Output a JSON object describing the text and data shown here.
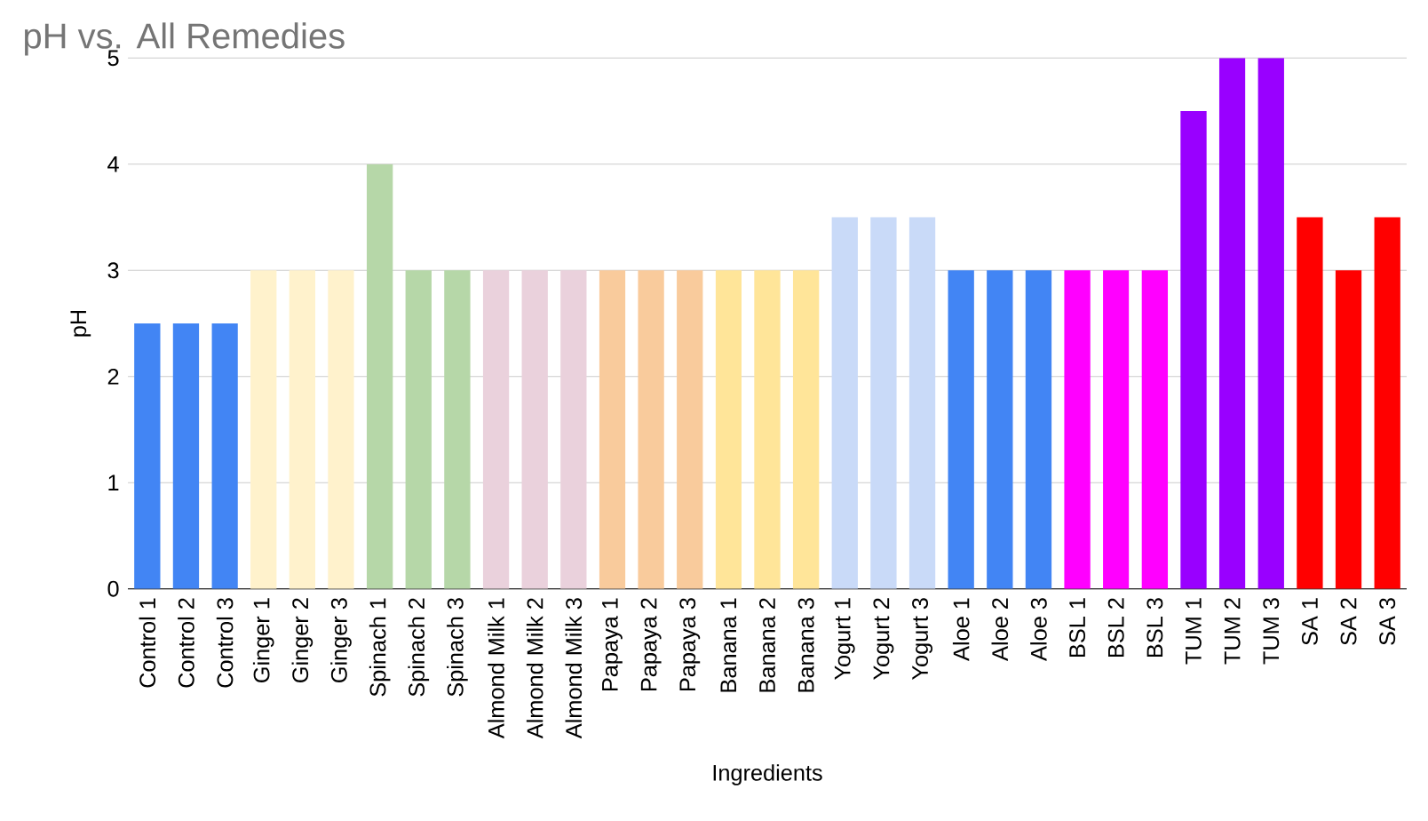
{
  "chart_data": {
    "type": "bar",
    "title": "pH vs. All Remedies",
    "xlabel": "Ingredients",
    "ylabel": "pH",
    "categories": [
      "Control 1",
      "Control 2",
      "Control 3",
      "Ginger 1",
      "Ginger 2",
      "Ginger 3",
      "Spinach 1",
      "Spinach 2",
      "Spinach 3",
      "Almond Milk 1",
      "Almond Milk 2",
      "Almond Milk 3",
      "Papaya 1",
      "Papaya 2",
      "Papaya 3",
      "Banana 1",
      "Banana 2",
      "Banana 3",
      "Yogurt 1",
      "Yogurt 2",
      "Yogurt 3",
      "Aloe 1",
      "Aloe 2",
      "Aloe 3",
      "BSL 1",
      "BSL 2",
      "BSL 3",
      "TUM 1",
      "TUM 2",
      "TUM 3",
      "SA 1",
      "SA 2",
      "SA 3"
    ],
    "values": [
      2.5,
      2.5,
      2.5,
      3,
      3,
      3,
      4,
      3,
      3,
      3,
      3,
      3,
      3,
      3,
      3,
      3,
      3,
      3,
      3.5,
      3.5,
      3.5,
      3,
      3,
      3,
      3,
      3,
      3,
      4.5,
      5,
      5,
      3.5,
      3,
      3.5
    ],
    "colors": [
      "#4285f4",
      "#4285f4",
      "#4285f4",
      "#fff2cc",
      "#fff2cc",
      "#fff2cc",
      "#b6d7a8",
      "#b6d7a8",
      "#b6d7a8",
      "#ead1dc",
      "#ead1dc",
      "#ead1dc",
      "#f9cb9c",
      "#f9cb9c",
      "#f9cb9c",
      "#ffe599",
      "#ffe599",
      "#ffe599",
      "#c9daf8",
      "#c9daf8",
      "#c9daf8",
      "#4285f4",
      "#4285f4",
      "#4285f4",
      "#ff00ff",
      "#ff00ff",
      "#ff00ff",
      "#9900ff",
      "#9900ff",
      "#9900ff",
      "#ff0000",
      "#ff0000",
      "#ff0000"
    ],
    "ylim": [
      0,
      5
    ],
    "yticks": [
      0,
      1,
      2,
      3,
      4,
      5
    ],
    "grid": "y"
  }
}
